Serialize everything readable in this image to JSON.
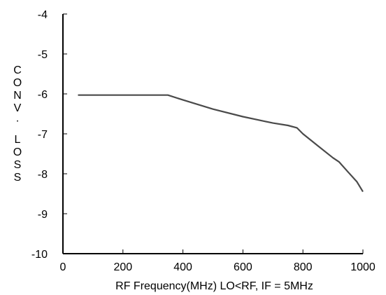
{
  "chart_data": {
    "type": "line",
    "title": "",
    "xlabel": "RF Frequency(MHz) LO<RF, IF = 5MHz",
    "ylabel": "CONV. LOSS",
    "xlim": [
      0,
      1000
    ],
    "ylim": [
      -10,
      -4
    ],
    "x_ticks": [
      "0",
      "200",
      "400",
      "600",
      "800",
      "1000"
    ],
    "y_ticks": [
      "-4",
      "-5",
      "-6",
      "-7",
      "-8",
      "-9",
      "-10"
    ],
    "grid": false,
    "series": [
      {
        "color": "#4a4a4a",
        "x": [
          50,
          100,
          200,
          300,
          350,
          400,
          500,
          600,
          650,
          700,
          750,
          780,
          800,
          850,
          900,
          920,
          950,
          980,
          1000
        ],
        "y": [
          -6.03,
          -6.03,
          -6.03,
          -6.03,
          -6.03,
          -6.15,
          -6.38,
          -6.57,
          -6.65,
          -6.73,
          -6.79,
          -6.85,
          -7.0,
          -7.3,
          -7.6,
          -7.7,
          -7.95,
          -8.2,
          -8.45
        ]
      }
    ]
  }
}
